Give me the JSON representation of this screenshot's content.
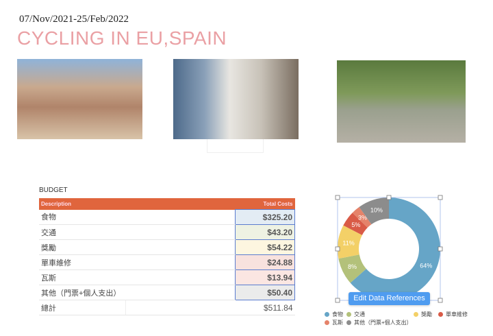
{
  "header": {
    "date": "07/Nov/2021-25/Feb/2022",
    "title": "CYCLING IN EU,SPAIN"
  },
  "budget": {
    "label": "BUDGET",
    "columns": [
      "Description",
      "Total Costs"
    ],
    "rows": [
      {
        "desc": "食物",
        "cost": "$325.20",
        "bg": "#e3ecf4"
      },
      {
        "desc": "交通",
        "cost": "$43.20",
        "bg": "#eef2e3"
      },
      {
        "desc": "獎勵",
        "cost": "$54.22",
        "bg": "#fdf6e0"
      },
      {
        "desc": "單車維修",
        "cost": "$24.88",
        "bg": "#f8e2de"
      },
      {
        "desc": "瓦斯",
        "cost": "$13.94",
        "bg": "#fbe6e2"
      },
      {
        "desc": "其他（門票+個人支出）",
        "cost": "$50.40",
        "bg": "#ebebeb"
      }
    ],
    "total": {
      "label": "總計",
      "value": "$511.84"
    }
  },
  "chart_data": {
    "type": "pie",
    "donut": true,
    "categories": [
      "食物",
      "交通",
      "獎勵",
      "單車維修",
      "瓦斯",
      "其他（門票+個人支出）"
    ],
    "values": [
      325.2,
      43.2,
      54.22,
      24.88,
      13.94,
      50.4
    ],
    "labels": [
      "64%",
      "8%",
      "11%",
      "5%",
      "3%",
      "10%"
    ],
    "colors": [
      "#66a5c7",
      "#b3c17a",
      "#f3d067",
      "#d95b47",
      "#e5836a",
      "#8c8c8c"
    ],
    "legend_placement": "bottom"
  },
  "edit_button": "Edit Data References"
}
